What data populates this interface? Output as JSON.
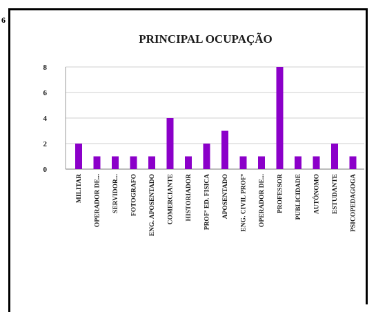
{
  "page_marker": "6",
  "chart_data": {
    "type": "bar",
    "title": "PRINCIPAL OCUPAÇÃO",
    "xlabel": "",
    "ylabel": "",
    "ylim": [
      0,
      8
    ],
    "yticks": [
      0,
      2,
      4,
      6,
      8
    ],
    "grid": true,
    "legend": "none",
    "bar_color": "#8B00C9",
    "categories": [
      "MILITAR",
      "OPERADOR DE...",
      "SERVIDOR...",
      "FOTOGRAFO",
      "ENG. APOSENTADO",
      "COMERCIANTE",
      "HISTORIADOR",
      "PROFª ED. FISICA",
      "APOSENTADO",
      "ENG. CIVIL PROFº",
      "OPERADOR DE...",
      "PROFESSOR",
      "PUBLICIDADE",
      "AUTÔNOMO",
      "ESTUDANTE",
      "PSICOPEDAGOGA"
    ],
    "values": [
      2,
      1,
      1,
      1,
      1,
      4,
      1,
      2,
      3,
      1,
      1,
      8,
      1,
      1,
      2,
      1
    ]
  }
}
